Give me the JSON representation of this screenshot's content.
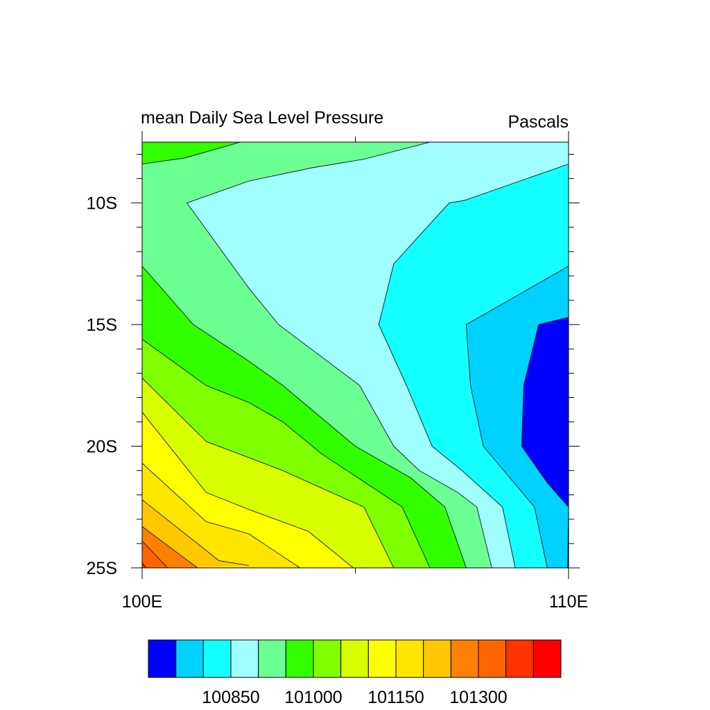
{
  "chart_data": {
    "type": "filled-contour map",
    "title_left": "mean Daily Sea Level Pressure",
    "title_right": "Pascals",
    "x_axis": {
      "range": [
        100,
        110
      ],
      "ticks": [
        {
          "value": 100,
          "label": "100E"
        },
        {
          "value": 110,
          "label": "110E"
        }
      ],
      "minor_ticks": [
        105
      ]
    },
    "y_axis": {
      "range": [
        -25,
        -7.5
      ],
      "ticks": [
        {
          "value": -10,
          "label": "10S"
        },
        {
          "value": -15,
          "label": "15S"
        },
        {
          "value": -20,
          "label": "20S"
        },
        {
          "value": -25,
          "label": "25S"
        }
      ],
      "minor_ticks": [
        -8,
        -9,
        -11,
        -12,
        -13,
        -14,
        -16,
        -17,
        -18,
        -19,
        -21,
        -22,
        -23,
        -24
      ]
    },
    "contour_levels": [
      100750,
      100800,
      100850,
      100900,
      100950,
      101000,
      101050,
      101100,
      101150,
      101200,
      101250,
      101300,
      101350,
      101400
    ],
    "colorbar": {
      "colors": [
        "#0000ff",
        "#00d2ff",
        "#14ffff",
        "#a0ffff",
        "#6cff94",
        "#32ff00",
        "#80ff00",
        "#d8ff00",
        "#ffff00",
        "#ffe600",
        "#ffc800",
        "#ff8000",
        "#ff6400",
        "#ff3200",
        "#ff0000"
      ],
      "labels": [
        {
          "value": 100850,
          "text": "100850"
        },
        {
          "value": 101000,
          "text": "101000"
        },
        {
          "value": 101150,
          "text": "101150"
        },
        {
          "value": 101300,
          "text": "101300"
        }
      ]
    },
    "contour_lines": [
      {
        "level": 100800,
        "points": [
          [
            109.98,
            -25
          ],
          [
            110,
            -22.5
          ]
        ]
      },
      {
        "level": 100800,
        "points": [
          [
            110,
            -14.7
          ],
          [
            109.3,
            -15
          ],
          [
            108.95,
            -17.5
          ],
          [
            108.9,
            -20
          ],
          [
            109.5,
            -21.5
          ],
          [
            110,
            -22.5
          ]
        ]
      },
      {
        "level": 100850,
        "points": [
          [
            109.5,
            -25
          ],
          [
            109.2,
            -22.5
          ],
          [
            108.0,
            -20
          ],
          [
            107.7,
            -17.5
          ],
          [
            107.6,
            -15
          ],
          [
            110,
            -12.6
          ]
        ]
      },
      {
        "level": 100900,
        "points": [
          [
            108.75,
            -25
          ],
          [
            108.45,
            -22.5
          ],
          [
            107.5,
            -21
          ],
          [
            106.8,
            -20
          ],
          [
            106.2,
            -17.5
          ],
          [
            105.55,
            -15
          ],
          [
            105.9,
            -12.5
          ],
          [
            107.2,
            -10
          ],
          [
            107.55,
            -9.9
          ],
          [
            110,
            -8.4
          ]
        ]
      },
      {
        "level": 100950,
        "points": [
          [
            108.2,
            -25
          ],
          [
            107.85,
            -22.5
          ],
          [
            107.4,
            -21.9
          ],
          [
            106.5,
            -21
          ],
          [
            105.9,
            -20
          ],
          [
            105.1,
            -17.5
          ],
          [
            103.2,
            -15
          ],
          [
            102.5,
            -13.5
          ],
          [
            101.05,
            -10
          ],
          [
            102.5,
            -9.1
          ],
          [
            104.0,
            -8.55
          ],
          [
            105.2,
            -8.2
          ],
          [
            106.75,
            -7.5
          ]
        ]
      },
      {
        "level": 101000,
        "points": [
          [
            107.6,
            -25
          ],
          [
            107.1,
            -22.5
          ],
          [
            106.3,
            -21.3
          ],
          [
            105.0,
            -20
          ],
          [
            103.3,
            -17.5
          ],
          [
            102.5,
            -16.5
          ],
          [
            101.2,
            -15
          ],
          [
            100,
            -12.6
          ]
        ]
      },
      {
        "level": 101000,
        "points": [
          [
            100,
            -8.4
          ],
          [
            101,
            -8.15
          ],
          [
            102.3,
            -7.5
          ]
        ]
      },
      {
        "level": 101050,
        "points": [
          [
            106.75,
            -25
          ],
          [
            106.1,
            -22.5
          ],
          [
            104.2,
            -20.3
          ],
          [
            103.3,
            -19
          ],
          [
            102.5,
            -18.2
          ],
          [
            101.5,
            -17.5
          ],
          [
            100,
            -15.6
          ]
        ]
      },
      {
        "level": 101100,
        "points": [
          [
            105.9,
            -25
          ],
          [
            105.2,
            -22.5
          ],
          [
            103.3,
            -21
          ],
          [
            101.5,
            -19.8
          ],
          [
            100,
            -17.2
          ]
        ]
      },
      {
        "level": 101150,
        "points": [
          [
            104.95,
            -25
          ],
          [
            103.9,
            -23.5
          ],
          [
            102.5,
            -22.6
          ],
          [
            101.5,
            -21.9
          ],
          [
            100,
            -18.6
          ]
        ]
      },
      {
        "level": 101200,
        "points": [
          [
            103.7,
            -25
          ],
          [
            102.5,
            -23.6
          ],
          [
            101.5,
            -23.1
          ],
          [
            100,
            -20.7
          ]
        ]
      },
      {
        "level": 101250,
        "points": [
          [
            102.5,
            -24.9
          ],
          [
            101.8,
            -24.7
          ],
          [
            100,
            -22.2
          ]
        ]
      },
      {
        "level": 101300,
        "points": [
          [
            101.3,
            -25
          ],
          [
            100,
            -23.3
          ]
        ]
      },
      {
        "level": 101350,
        "points": [
          [
            100.6,
            -25
          ],
          [
            100,
            -23.9
          ]
        ]
      },
      {
        "level": 101400,
        "points": [
          [
            100.1,
            -25
          ],
          [
            100,
            -24.8
          ]
        ]
      }
    ]
  }
}
